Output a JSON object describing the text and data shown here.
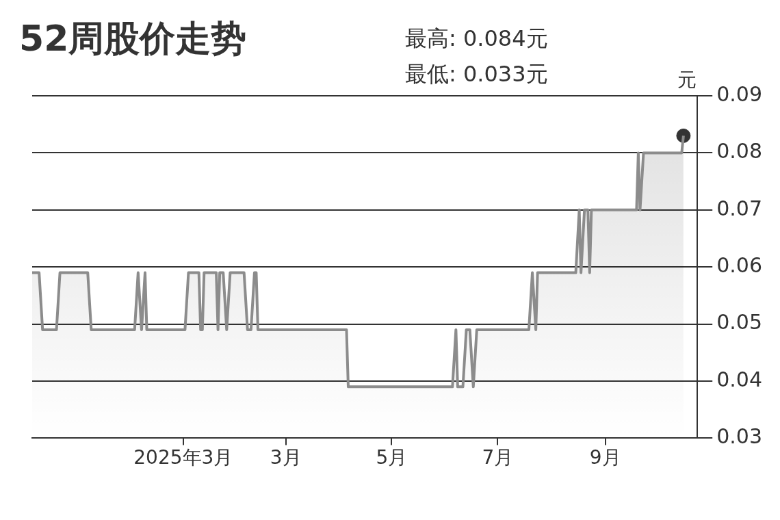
{
  "chart_data": {
    "type": "area",
    "title": "52周股价走势",
    "ylabel": "元",
    "annotations": [
      "最高: 0.084元",
      "最低: 0.033元"
    ],
    "series": [
      {
        "color": "#8c8c8c",
        "marker": "none",
        "x": [
          "2024-10-06",
          "2024-10-10",
          "2024-10-12",
          "2024-10-20",
          "2024-10-22",
          "2024-11-07",
          "2024-11-09",
          "2024-12-04",
          "2024-12-06",
          "2024-12-08",
          "2024-12-10",
          "2024-12-11",
          "2025-01-02",
          "2025-01-04",
          "2025-01-10",
          "2025-01-11",
          "2025-01-12",
          "2025-01-13",
          "2025-01-20",
          "2025-01-21",
          "2025-01-22",
          "2025-01-24",
          "2025-01-26",
          "2025-01-28",
          "2025-02-05",
          "2025-02-07",
          "2025-02-09",
          "2025-02-11",
          "2025-02-12",
          "2025-02-13",
          "2025-04-05",
          "2025-04-06",
          "2025-06-05",
          "2025-06-07",
          "2025-06-08",
          "2025-06-11",
          "2025-06-13",
          "2025-06-15",
          "2025-06-17",
          "2025-06-19",
          "2025-07-19",
          "2025-07-21",
          "2025-07-23",
          "2025-07-24",
          "2025-08-15",
          "2025-08-17",
          "2025-08-18",
          "2025-08-20",
          "2025-08-22",
          "2025-08-23",
          "2025-08-24",
          "2025-09-19",
          "2025-09-20",
          "2025-09-21",
          "2025-09-23",
          "2025-10-15",
          "2025-10-16"
        ],
        "values": [
          0.059,
          0.059,
          0.049,
          0.049,
          0.059,
          0.059,
          0.049,
          0.049,
          0.059,
          0.049,
          0.059,
          0.049,
          0.049,
          0.059,
          0.059,
          0.049,
          0.049,
          0.059,
          0.059,
          0.049,
          0.059,
          0.059,
          0.049,
          0.059,
          0.059,
          0.049,
          0.049,
          0.059,
          0.059,
          0.049,
          0.049,
          0.039,
          0.039,
          0.049,
          0.039,
          0.039,
          0.049,
          0.049,
          0.039,
          0.049,
          0.049,
          0.059,
          0.049,
          0.059,
          0.059,
          0.07,
          0.059,
          0.07,
          0.07,
          0.059,
          0.07,
          0.07,
          0.08,
          0.07,
          0.08,
          0.08,
          0.083
        ]
      },
      {
        "type": "scatter",
        "color": "#333333",
        "marker": "circle",
        "x": [
          "2025-10-16"
        ],
        "values": [
          0.083
        ]
      }
    ],
    "xlim": [
      "2024-10-06",
      "2025-10-24"
    ],
    "xticks": [
      {
        "value": "2025-01-01",
        "label": "2025年3月"
      },
      {
        "value": "2025-03-01",
        "label": "3月"
      },
      {
        "value": "2025-05-01",
        "label": "5月"
      },
      {
        "value": "2025-07-01",
        "label": "7月"
      },
      {
        "value": "2025-09-01",
        "label": "9月"
      }
    ],
    "ylim": [
      0.03,
      0.09
    ],
    "yticks": [
      0.03,
      0.04,
      0.05,
      0.06,
      0.07,
      0.08,
      0.09
    ],
    "grid": "y",
    "legend": false
  }
}
